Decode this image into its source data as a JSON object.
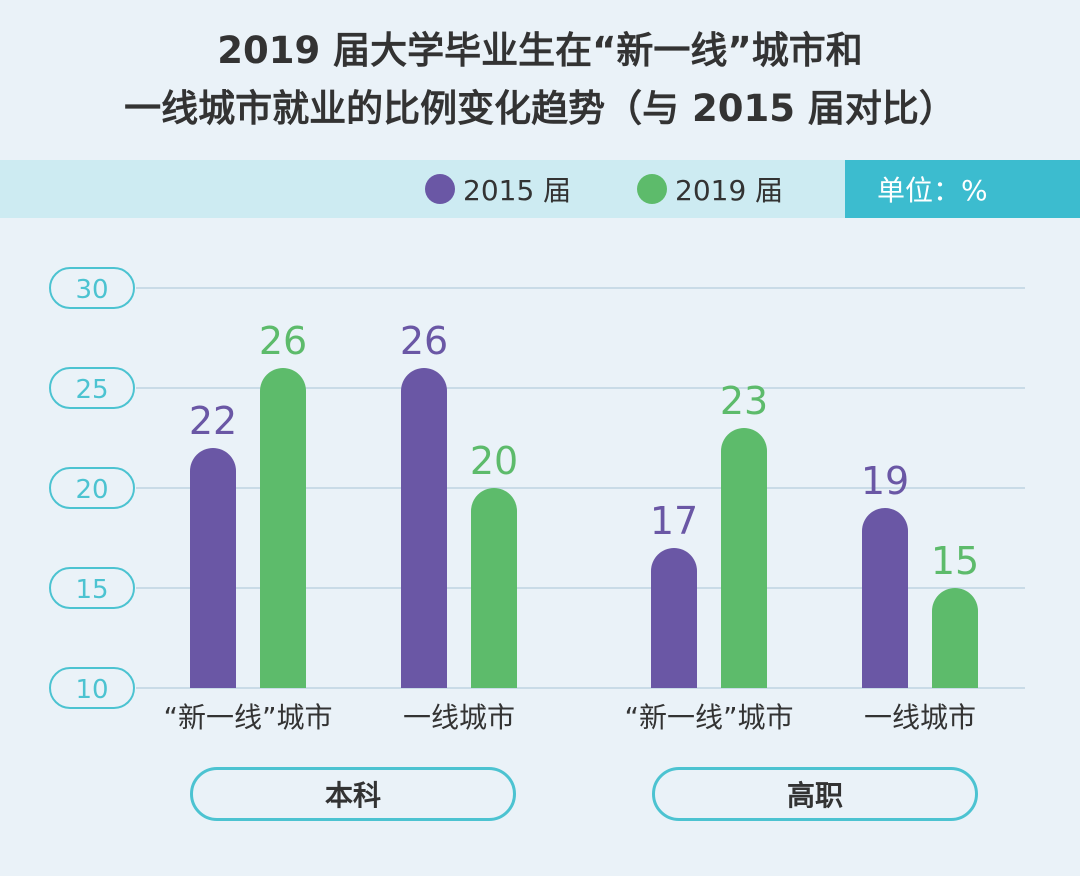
{
  "title_lines": [
    "2019 届大学毕业生在“新一线”城市和",
    "一线城市就业的比例变化趋势（与 2015 届对比）"
  ],
  "unit_label": "单位：%",
  "chart_data": {
    "type": "bar",
    "title": "2019 届大学毕业生在“新一线”城市和一线城市就业的比例变化趋势（与 2015 届对比）",
    "ylim": [
      10,
      30
    ],
    "yticks": [
      30,
      25,
      20,
      15,
      10
    ],
    "grid": true,
    "legend_position": "top-right",
    "groups": [
      {
        "label": "本科",
        "categories": [
          "“新一线”城市",
          "一线城市"
        ]
      },
      {
        "label": "高职",
        "categories": [
          "“新一线”城市",
          "一线城市"
        ]
      }
    ],
    "categories": [
      "“新一线”城市",
      "一线城市",
      "“新一线”城市",
      "一线城市"
    ],
    "series": [
      {
        "name": "2015 届",
        "color": "#6a57a5",
        "values": [
          22,
          26,
          17,
          19
        ]
      },
      {
        "name": "2019 届",
        "color": "#5dbb6b",
        "values": [
          26,
          20,
          23,
          15
        ]
      }
    ]
  }
}
